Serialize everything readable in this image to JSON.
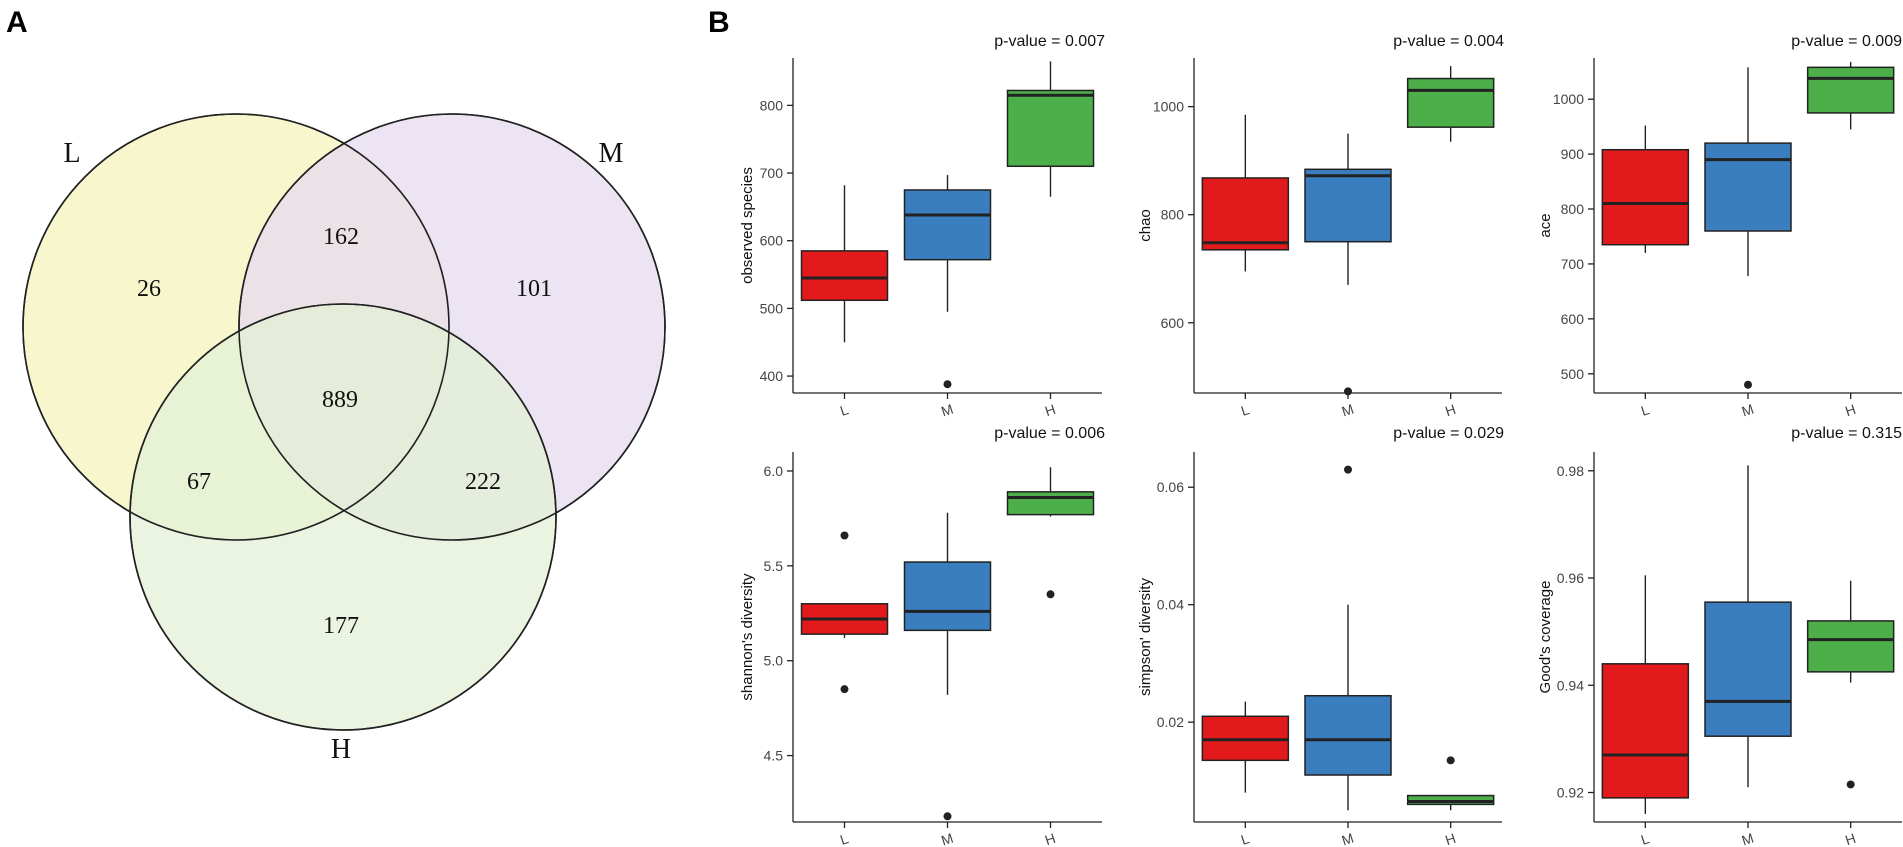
{
  "panels": {
    "a_letter": "A",
    "b_letter": "B"
  },
  "venn": {
    "sets": [
      {
        "name": "L",
        "color": "#f7f5c8"
      },
      {
        "name": "M",
        "color": "#e6dbee"
      },
      {
        "name": "H",
        "color": "#e3f0d5"
      }
    ],
    "regions": {
      "L_only": "26",
      "M_only": "101",
      "H_only": "177",
      "L_M": "162",
      "L_H": "67",
      "M_H": "222",
      "L_M_H": "889"
    }
  },
  "colors": {
    "L": "#e31a1c",
    "M": "#3a7ebf",
    "H": "#4daf4a"
  },
  "chart_data": [
    {
      "type": "box",
      "ylabel": "observed species",
      "pvalue_text": "p-value = 0.007",
      "ylim": [
        375,
        870
      ],
      "yticks": [
        400,
        500,
        600,
        700,
        800
      ],
      "categories": [
        "L",
        "M",
        "H"
      ],
      "boxes": [
        {
          "group": "L",
          "min": 450,
          "q1": 512,
          "median": 545,
          "q3": 585,
          "max": 682,
          "outliers": []
        },
        {
          "group": "M",
          "min": 495,
          "q1": 572,
          "median": 638,
          "q3": 675,
          "max": 697,
          "outliers": [
            388
          ]
        },
        {
          "group": "H",
          "min": 665,
          "q1": 710,
          "median": 815,
          "q3": 822,
          "max": 865,
          "outliers": []
        }
      ]
    },
    {
      "type": "box",
      "ylabel": "chao",
      "pvalue_text": "p-value = 0.004",
      "ylim": [
        470,
        1090
      ],
      "yticks": [
        600,
        800,
        1000
      ],
      "categories": [
        "L",
        "M",
        "H"
      ],
      "boxes": [
        {
          "group": "L",
          "min": 695,
          "q1": 735,
          "median": 748,
          "q3": 868,
          "max": 985,
          "outliers": []
        },
        {
          "group": "M",
          "min": 670,
          "q1": 750,
          "median": 872,
          "q3": 884,
          "max": 950,
          "outliers": [
            473
          ]
        },
        {
          "group": "H",
          "min": 935,
          "q1": 962,
          "median": 1030,
          "q3": 1052,
          "max": 1075,
          "outliers": []
        }
      ]
    },
    {
      "type": "box",
      "ylabel": "ace",
      "pvalue_text": "p-value = 0.009",
      "ylim": [
        465,
        1075
      ],
      "yticks": [
        500,
        600,
        700,
        800,
        900,
        1000
      ],
      "categories": [
        "L",
        "M",
        "H"
      ],
      "boxes": [
        {
          "group": "L",
          "min": 720,
          "q1": 735,
          "median": 810,
          "q3": 908,
          "max": 952,
          "outliers": []
        },
        {
          "group": "M",
          "min": 678,
          "q1": 760,
          "median": 890,
          "q3": 920,
          "max": 1058,
          "outliers": [
            480
          ]
        },
        {
          "group": "H",
          "min": 945,
          "q1": 975,
          "median": 1038,
          "q3": 1058,
          "max": 1068,
          "outliers": []
        }
      ]
    },
    {
      "type": "box",
      "ylabel": "shannon's diversity",
      "pvalue_text": "p-value = 0.006",
      "ylim": [
        4.15,
        6.1
      ],
      "yticks": [
        4.5,
        5.0,
        5.5,
        6.0
      ],
      "ytick_labels": [
        "4.5",
        "5.0",
        "5.5",
        "6.0"
      ],
      "categories": [
        "L",
        "M",
        "H"
      ],
      "boxes": [
        {
          "group": "L",
          "min": 5.12,
          "q1": 5.14,
          "median": 5.22,
          "q3": 5.3,
          "max": 5.3,
          "outliers": [
            4.85,
            5.66
          ]
        },
        {
          "group": "M",
          "min": 4.82,
          "q1": 5.16,
          "median": 5.26,
          "q3": 5.52,
          "max": 5.78,
          "outliers": [
            4.18
          ]
        },
        {
          "group": "H",
          "min": 5.76,
          "q1": 5.77,
          "median": 5.86,
          "q3": 5.89,
          "max": 6.02,
          "outliers": [
            5.35
          ]
        }
      ]
    },
    {
      "type": "box",
      "ylabel": "simpson' diversity",
      "pvalue_text": "p-value = 0.029",
      "ylim": [
        0.003,
        0.066
      ],
      "yticks": [
        0.02,
        0.04,
        0.06
      ],
      "ytick_labels": [
        "0.02",
        "0.04",
        "0.06"
      ],
      "categories": [
        "L",
        "M",
        "H"
      ],
      "boxes": [
        {
          "group": "L",
          "min": 0.008,
          "q1": 0.0135,
          "median": 0.017,
          "q3": 0.021,
          "max": 0.0235,
          "outliers": []
        },
        {
          "group": "M",
          "min": 0.005,
          "q1": 0.011,
          "median": 0.017,
          "q3": 0.0245,
          "max": 0.04,
          "outliers": [
            0.063
          ]
        },
        {
          "group": "H",
          "min": 0.005,
          "q1": 0.006,
          "median": 0.0065,
          "q3": 0.0075,
          "max": 0.0075,
          "outliers": [
            0.0135
          ]
        }
      ]
    },
    {
      "type": "box",
      "ylabel": "Good's coverage",
      "pvalue_text": "p-value = 0.315",
      "ylim": [
        0.9145,
        0.9835
      ],
      "yticks": [
        0.92,
        0.94,
        0.96,
        0.98
      ],
      "ytick_labels": [
        "0.92",
        "0.94",
        "0.96",
        "0.98"
      ],
      "categories": [
        "L",
        "M",
        "H"
      ],
      "boxes": [
        {
          "group": "L",
          "min": 0.916,
          "q1": 0.919,
          "median": 0.927,
          "q3": 0.944,
          "max": 0.9605,
          "outliers": []
        },
        {
          "group": "M",
          "min": 0.921,
          "q1": 0.9305,
          "median": 0.937,
          "q3": 0.9555,
          "max": 0.981,
          "outliers": []
        },
        {
          "group": "H",
          "min": 0.9405,
          "q1": 0.9425,
          "median": 0.9485,
          "q3": 0.952,
          "max": 0.9595,
          "outliers": [
            0.9215
          ]
        }
      ]
    }
  ]
}
